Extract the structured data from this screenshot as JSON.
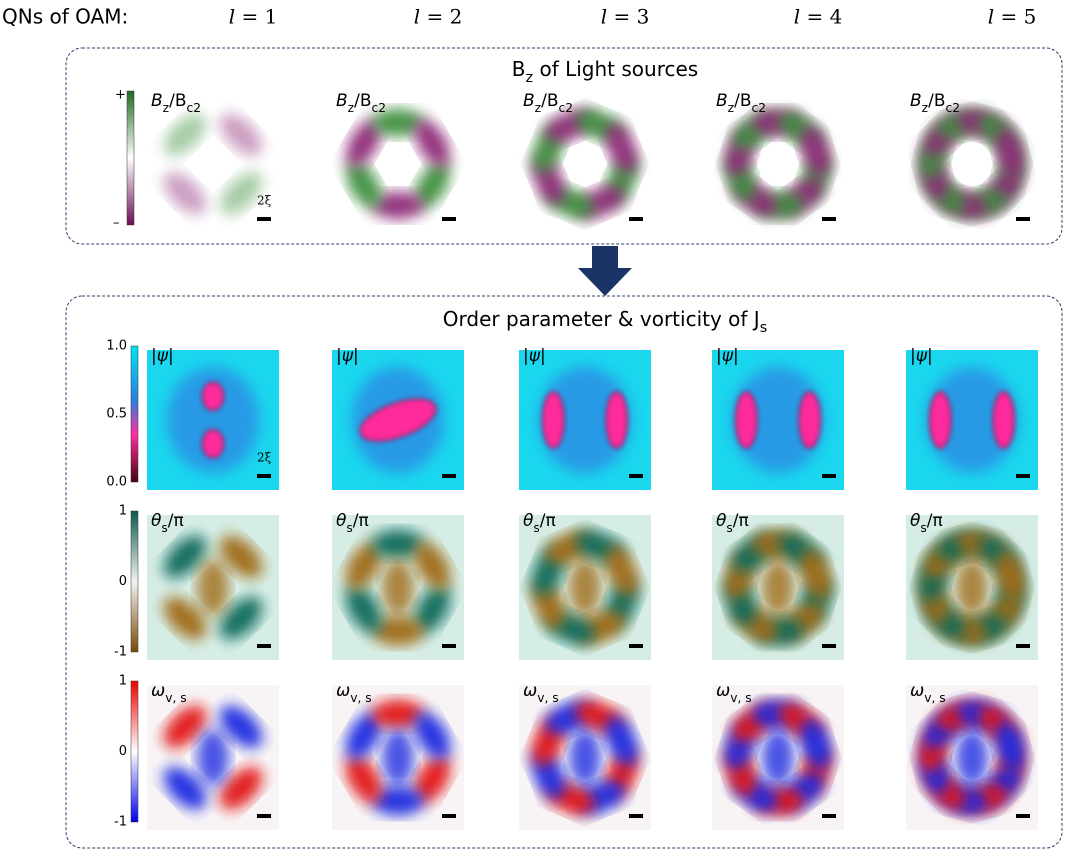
{
  "header": {
    "label": "QNs of OAM:",
    "columns": [
      "𝑙 = 1",
      "𝑙 = 2",
      "𝑙 = 3",
      "𝑙 = 4",
      "𝑙 = 5"
    ]
  },
  "source_box": {
    "title": [
      "B",
      "z",
      " of Light sources"
    ],
    "colorbar": {
      "top": "+",
      "bottom": "–"
    },
    "panel_label": [
      "B",
      "z",
      "/B",
      "c2"
    ],
    "scale_label": "2ξ"
  },
  "response_box": {
    "title": [
      "Order parameter & vorticity of J",
      "s"
    ],
    "rows": [
      {
        "colorbar": [
          "1.0",
          "0.5",
          "0.0"
        ],
        "panel_label": [
          "|ψ|"
        ],
        "scale_label": "2ξ"
      },
      {
        "colorbar": [
          "1",
          "0",
          "-1"
        ],
        "panel_label": [
          "θ",
          "s",
          "/π"
        ]
      },
      {
        "colorbar": [
          "1",
          "0",
          "-1"
        ],
        "panel_label": [
          "ω",
          "v, s"
        ]
      }
    ]
  }
}
